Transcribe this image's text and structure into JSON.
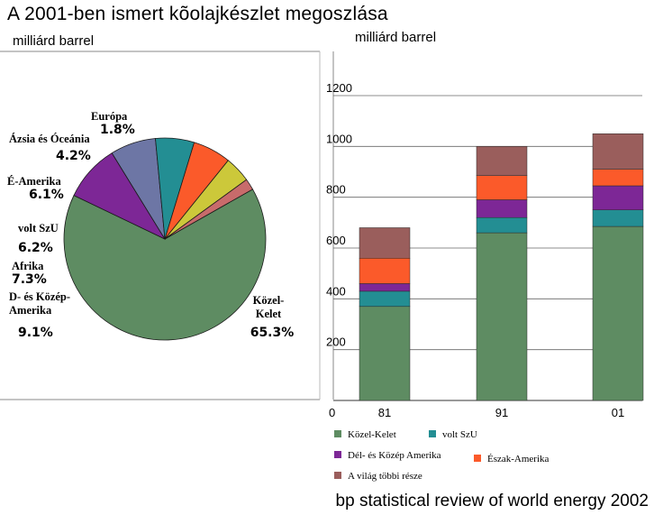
{
  "title": "A 2001-ben ismert kõolajkészlet megoszlása",
  "left_unit": "milliárd barrel",
  "right_unit": "milliárd barrel",
  "source": "bp statistical review of world energy 2002",
  "colors": {
    "kozel_kelet": "#5e8c62",
    "volt_szu": "#238e93",
    "del_kozep": "#7d2796",
    "eszak": "#fb5a2a",
    "vilag": "#9a5e5c",
    "afrika": "#6d76a5",
    "azsia": "#ccc83a",
    "europa": "#c86b6b"
  },
  "chart_data": [
    {
      "type": "pie",
      "unit": "milliárd barrel",
      "slices": [
        {
          "name": "Közel-Kelet",
          "label": [
            "Közel-",
            "Kelet"
          ],
          "pct_label": "65.3%",
          "value": 65.3,
          "color": "#5e8c62"
        },
        {
          "name": "D- és Közép-Amerika",
          "label": [
            "D- és Közép-",
            "Amerika"
          ],
          "pct_label": "9.1%",
          "value": 9.1,
          "color": "#7d2796"
        },
        {
          "name": "Afrika",
          "label": [
            "Afrika"
          ],
          "pct_label": "7.3%",
          "value": 7.3,
          "color": "#6d76a5"
        },
        {
          "name": "volt SzU",
          "label": [
            "volt SzU"
          ],
          "pct_label": "6.2%",
          "value": 6.2,
          "color": "#238e93"
        },
        {
          "name": "É-Amerika",
          "label": [
            "É-Amerika"
          ],
          "pct_label": "6.1%",
          "value": 6.1,
          "color": "#fb5a2a"
        },
        {
          "name": "Ázsia és Óceánia",
          "label": [
            "Ázsia és Óceánia"
          ],
          "pct_label": "4.2%",
          "value": 4.2,
          "color": "#ccc83a"
        },
        {
          "name": "Európa",
          "label": [
            "Európa"
          ],
          "pct_label": "1.8%",
          "value": 1.8,
          "color": "#c86b6b"
        }
      ]
    },
    {
      "type": "bar",
      "stacked": true,
      "unit": "milliárd barrel",
      "origin_label": "0",
      "categories": [
        "81",
        "91",
        "01"
      ],
      "ylim": [
        0,
        1200
      ],
      "yticks": [
        200,
        400,
        600,
        800,
        1000,
        1200
      ],
      "grid": true,
      "series": [
        {
          "name": "Közel-Kelet",
          "values": [
            370,
            660,
            685
          ],
          "color": "#5e8c62"
        },
        {
          "name": "volt SzU",
          "values": [
            60,
            60,
            65
          ],
          "color": "#238e93"
        },
        {
          "name": "Dél- és Közép Amerika",
          "values": [
            30,
            70,
            95
          ],
          "color": "#7d2796"
        },
        {
          "name": "Észak-Amerika",
          "values": [
            100,
            95,
            65
          ],
          "color": "#fb5a2a"
        },
        {
          "name": "A világ többi része",
          "values": [
            120,
            115,
            140
          ],
          "color": "#9a5e5c"
        }
      ],
      "legend": [
        {
          "label": "Közel-Kelet",
          "color": "#5e8c62"
        },
        {
          "label": "volt SzU",
          "color": "#238e93"
        },
        {
          "label": "Dél- és Közép Amerika",
          "color": "#7d2796"
        },
        {
          "label": "Észak-Amerika",
          "color": "#fb5a2a"
        },
        {
          "label": "A világ többi része",
          "color": "#9a5e5c"
        }
      ]
    }
  ]
}
